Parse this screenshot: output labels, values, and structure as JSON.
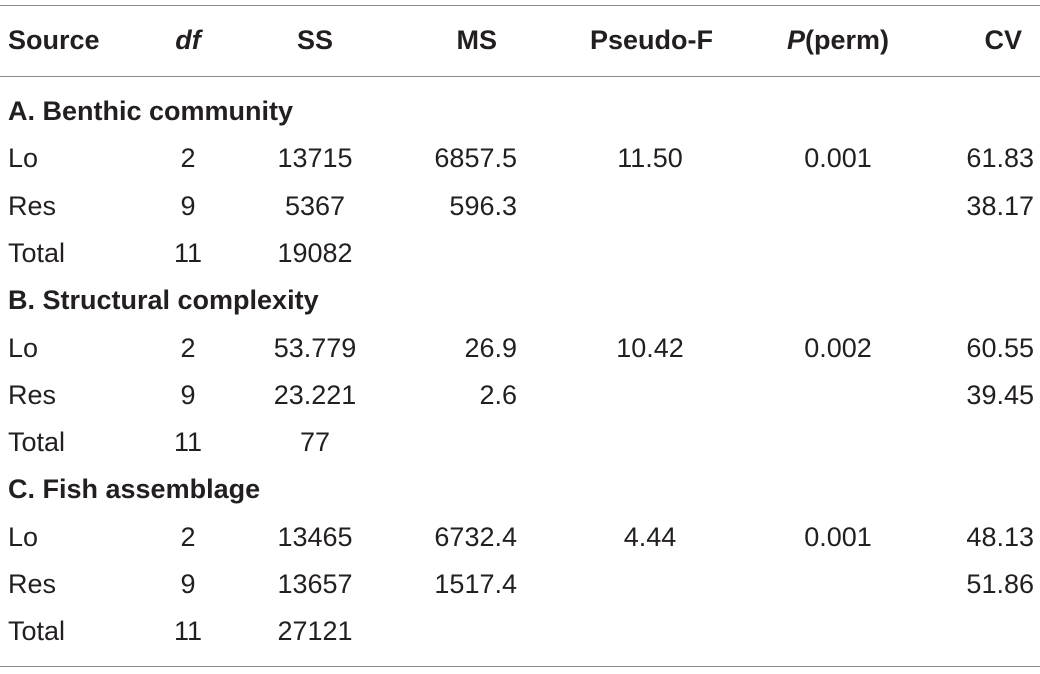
{
  "header": {
    "source": "Source",
    "df": "df",
    "ss": "SS",
    "ms": "MS",
    "pseudo_f": "Pseudo-F",
    "p_perm_italic": "P",
    "p_perm_rest": "(perm)",
    "cv": "CV"
  },
  "sections": [
    {
      "title": "A. Benthic community",
      "rows": [
        {
          "source": "Lo",
          "df": "2",
          "ss": "13715",
          "ms": "6857.5",
          "pseudo_f": "11.50",
          "p_perm": "0.001",
          "cv": "61.83"
        },
        {
          "source": "Res",
          "df": "9",
          "ss": "5367",
          "ms": "596.3",
          "pseudo_f": "",
          "p_perm": "",
          "cv": "38.17"
        },
        {
          "source": "Total",
          "df": "11",
          "ss": "19082",
          "ms": "",
          "pseudo_f": "",
          "p_perm": "",
          "cv": ""
        }
      ]
    },
    {
      "title": "B. Structural complexity",
      "rows": [
        {
          "source": "Lo",
          "df": "2",
          "ss": "53.779",
          "ms": "26.9",
          "pseudo_f": "10.42",
          "p_perm": "0.002",
          "cv": "60.55"
        },
        {
          "source": "Res",
          "df": "9",
          "ss": "23.221",
          "ms": "2.6",
          "pseudo_f": "",
          "p_perm": "",
          "cv": "39.45"
        },
        {
          "source": "Total",
          "df": "11",
          "ss": "77",
          "ms": "",
          "pseudo_f": "",
          "p_perm": "",
          "cv": ""
        }
      ]
    },
    {
      "title": "C. Fish assemblage",
      "rows": [
        {
          "source": "Lo",
          "df": "2",
          "ss": "13465",
          "ms": "6732.4",
          "pseudo_f": "4.44",
          "p_perm": "0.001",
          "cv": "48.13"
        },
        {
          "source": "Res",
          "df": "9",
          "ss": "13657",
          "ms": "1517.4",
          "pseudo_f": "",
          "p_perm": "",
          "cv": "51.86"
        },
        {
          "source": "Total",
          "df": "11",
          "ss": "27121",
          "ms": "",
          "pseudo_f": "",
          "p_perm": "",
          "cv": ""
        }
      ]
    }
  ]
}
